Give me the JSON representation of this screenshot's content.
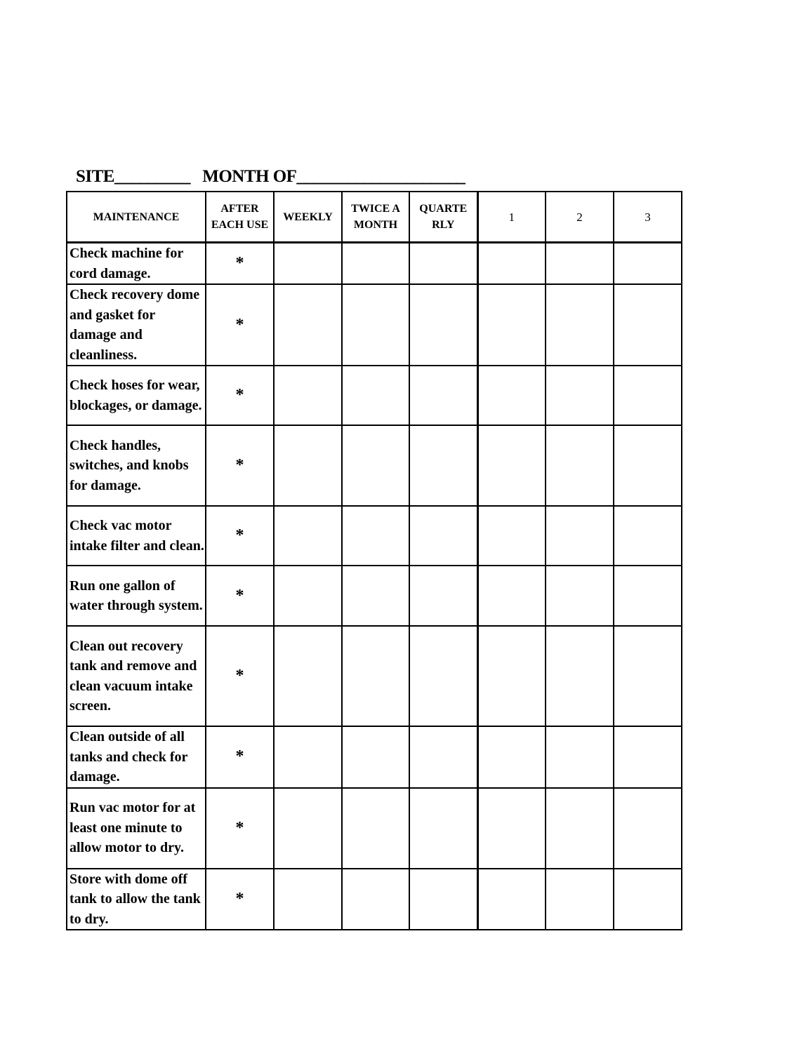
{
  "title": {
    "site_label": "SITE_________",
    "month_label": "MONTH OF____________________"
  },
  "headers": [
    "MAINTENANCE",
    "AFTER EACH USE",
    "WEEKLY",
    "TWICE A MONTH",
    "QUARTE RLY",
    "1",
    "2",
    "3"
  ],
  "mark_symbol": "*",
  "rows": [
    {
      "task": "Check machine for cord damage.",
      "after_each_use": "*"
    },
    {
      "task": "Check recovery dome and gasket for damage and cleanliness.",
      "after_each_use": "*"
    },
    {
      "task": "Check hoses for wear, blockages, or damage.",
      "after_each_use": "*"
    },
    {
      "task": "Check handles, switches, and knobs for damage.",
      "after_each_use": "*"
    },
    {
      "task": "Check vac motor intake filter and clean.",
      "after_each_use": "*"
    },
    {
      "task": "Run one gallon of water through system.",
      "after_each_use": "*"
    },
    {
      "task": "Clean out recovery tank and remove and clean vacuum intake screen.",
      "after_each_use": "*"
    },
    {
      "task": "Clean outside of all tanks and check for damage.",
      "after_each_use": "*"
    },
    {
      "task": "Run vac motor for at least one minute to allow motor to dry.",
      "after_each_use": "*"
    },
    {
      "task": "Store with dome off tank to allow the tank to dry.",
      "after_each_use": "*"
    }
  ]
}
